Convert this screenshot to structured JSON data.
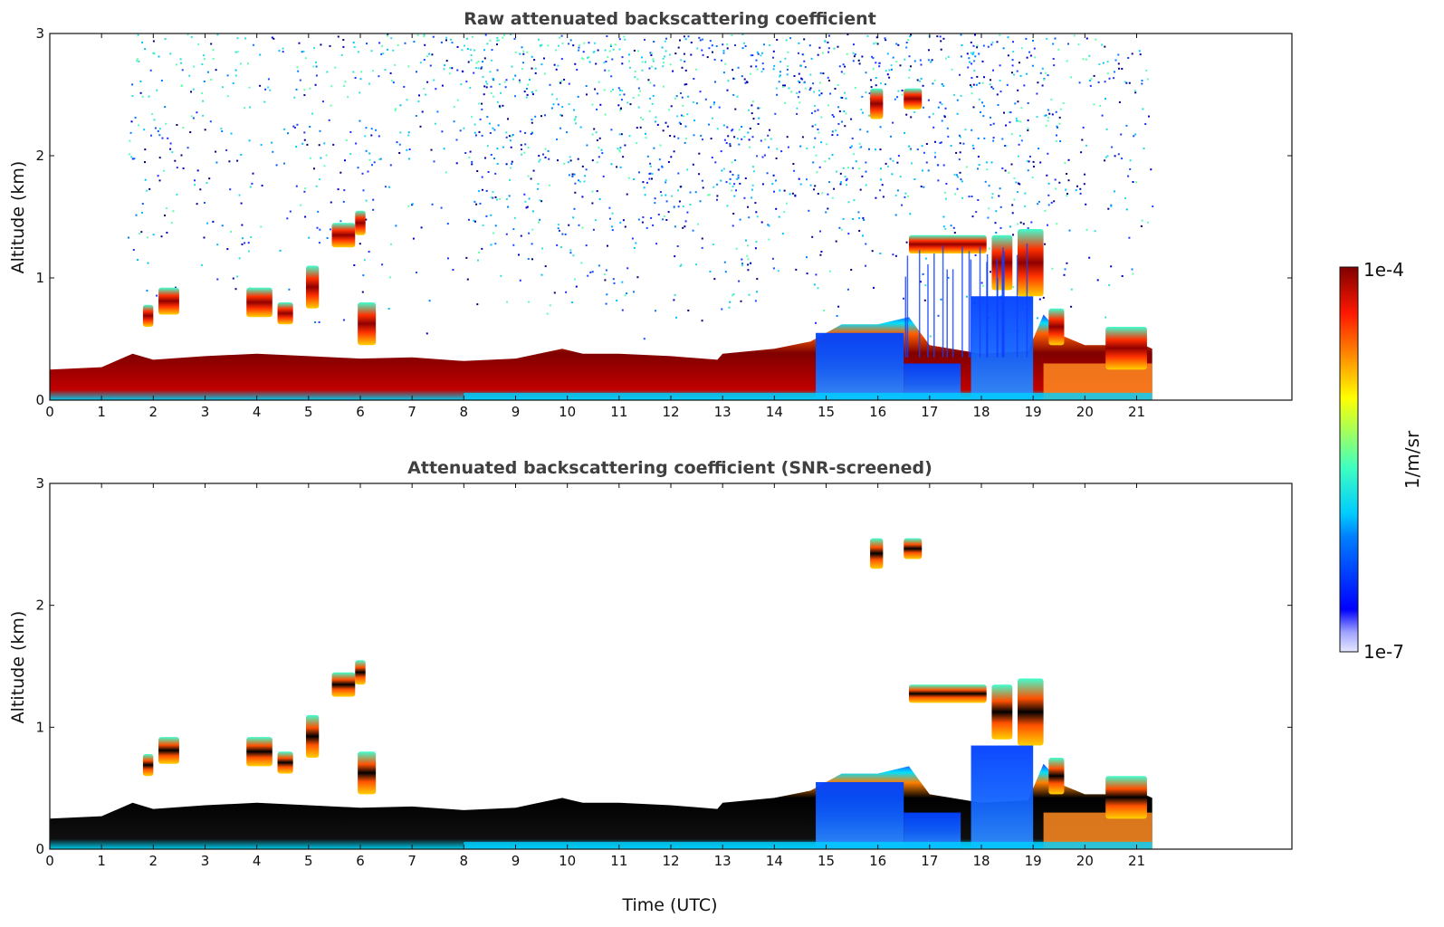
{
  "chart_data": [
    {
      "type": "heatmap",
      "title": "Raw attenuated backscattering coefficient",
      "xlabel": "",
      "ylabel": "Altitude (km)",
      "xlim": [
        0,
        24
      ],
      "ylim": [
        0,
        3
      ],
      "xticks": [
        "0",
        "1",
        "2",
        "3",
        "4",
        "5",
        "6",
        "7",
        "8",
        "9",
        "10",
        "11",
        "12",
        "13",
        "14",
        "15",
        "16",
        "17",
        "18",
        "19",
        "20",
        "21"
      ],
      "yticks": [
        "0",
        "1",
        "2",
        "3"
      ],
      "data_end_time": 21.3,
      "screened": false
    },
    {
      "type": "heatmap",
      "title": "Attenuated backscattering coefficient (SNR-screened)",
      "xlabel": "Time (UTC)",
      "ylabel": "Altitude (km)",
      "xlim": [
        0,
        24
      ],
      "ylim": [
        0,
        3
      ],
      "xticks": [
        "0",
        "1",
        "2",
        "3",
        "4",
        "5",
        "6",
        "7",
        "8",
        "9",
        "10",
        "11",
        "12",
        "13",
        "14",
        "15",
        "16",
        "17",
        "18",
        "19",
        "20",
        "21"
      ],
      "yticks": [
        "0",
        "1",
        "2",
        "3"
      ],
      "data_end_time": 21.3,
      "screened": true
    }
  ],
  "colorbar": {
    "max_label": "1e-4",
    "min_label": "1e-7",
    "unit_label": "1/m/sr",
    "scale": "log",
    "colormap": "jet"
  },
  "features": {
    "boundary_layer_top_km": [
      [
        0,
        0.25
      ],
      [
        1,
        0.27
      ],
      [
        1.6,
        0.38
      ],
      [
        2,
        0.33
      ],
      [
        3,
        0.36
      ],
      [
        4,
        0.38
      ],
      [
        5,
        0.36
      ],
      [
        6,
        0.34
      ],
      [
        7,
        0.35
      ],
      [
        8,
        0.32
      ],
      [
        9,
        0.34
      ],
      [
        9.9,
        0.42
      ],
      [
        10.3,
        0.38
      ],
      [
        11,
        0.38
      ],
      [
        12,
        0.36
      ],
      [
        12.9,
        0.33
      ],
      [
        13,
        0.38
      ],
      [
        14,
        0.42
      ],
      [
        14.7,
        0.48
      ],
      [
        15.3,
        0.62
      ],
      [
        16,
        0.62
      ],
      [
        16.6,
        0.68
      ],
      [
        17,
        0.45
      ],
      [
        18,
        0.38
      ],
      [
        18.9,
        0.4
      ],
      [
        19.2,
        0.7
      ],
      [
        19.6,
        0.52
      ],
      [
        20,
        0.45
      ],
      [
        20.5,
        0.45
      ],
      [
        21,
        0.48
      ],
      [
        21.3,
        0.42
      ]
    ],
    "cloud_patches": [
      {
        "t0": 1.8,
        "t1": 2.0,
        "z0": 0.6,
        "z1": 0.78
      },
      {
        "t0": 2.1,
        "t1": 2.5,
        "z0": 0.7,
        "z1": 0.92
      },
      {
        "t0": 3.8,
        "t1": 4.3,
        "z0": 0.68,
        "z1": 0.92
      },
      {
        "t0": 4.4,
        "t1": 4.7,
        "z0": 0.62,
        "z1": 0.8
      },
      {
        "t0": 4.95,
        "t1": 5.2,
        "z0": 0.75,
        "z1": 1.1
      },
      {
        "t0": 5.45,
        "t1": 5.9,
        "z0": 1.25,
        "z1": 1.45
      },
      {
        "t0": 5.9,
        "t1": 6.1,
        "z0": 1.35,
        "z1": 1.55
      },
      {
        "t0": 5.95,
        "t1": 6.3,
        "z0": 0.45,
        "z1": 0.8
      },
      {
        "t0": 15.85,
        "t1": 16.1,
        "z0": 2.3,
        "z1": 2.55
      },
      {
        "t0": 16.5,
        "t1": 16.85,
        "z0": 2.38,
        "z1": 2.55
      },
      {
        "t0": 16.6,
        "t1": 18.1,
        "z0": 1.2,
        "z1": 1.35
      },
      {
        "t0": 18.2,
        "t1": 18.6,
        "z0": 0.9,
        "z1": 1.35
      },
      {
        "t0": 18.7,
        "t1": 19.2,
        "z0": 0.85,
        "z1": 1.4
      },
      {
        "t0": 19.3,
        "t1": 19.6,
        "z0": 0.45,
        "z1": 0.75
      },
      {
        "t0": 20.4,
        "t1": 21.2,
        "z0": 0.25,
        "z1": 0.6
      }
    ],
    "low_backscatter_regions": [
      {
        "t0": 14.8,
        "t1": 16.5,
        "z0": 0.0,
        "z1": 0.55
      },
      {
        "t0": 16.5,
        "t1": 17.6,
        "z0": 0.0,
        "z1": 0.3
      },
      {
        "t0": 17.8,
        "t1": 19.0,
        "z0": 0.0,
        "z1": 0.85
      }
    ]
  }
}
